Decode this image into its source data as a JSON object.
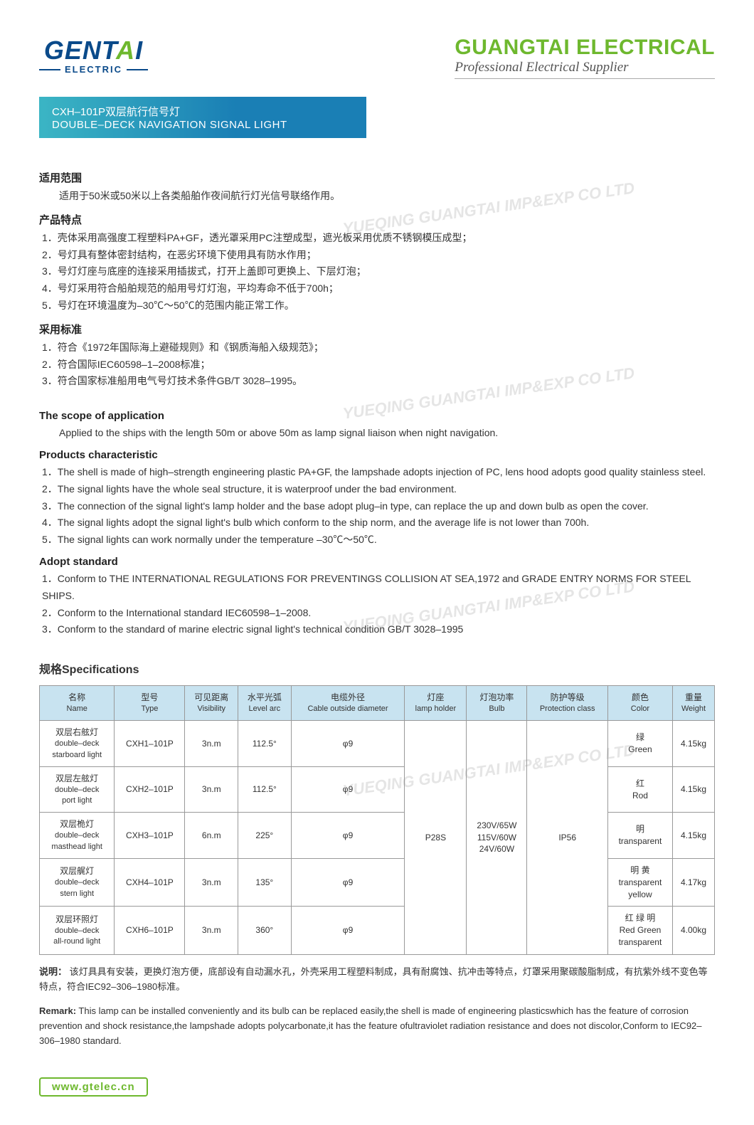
{
  "header": {
    "logo_left_main": "GENT",
    "logo_left_house": "A",
    "logo_left_tail": "I",
    "logo_left_sub": "ELECTRIC",
    "logo_right_main": "GUANGTAI ELECTRICAL",
    "logo_right_sub": "Professional Electrical Supplier"
  },
  "title": {
    "cn": "CXH–101P双层航行信号灯",
    "en": "DOUBLE–DECK  NAVIGATION SIGNAL LIGHT"
  },
  "cn_sections": {
    "scope_title": "适用范围",
    "scope_body": "适用于50米或50米以上各类船舶作夜间航行灯光信号联络作用。",
    "feature_title": "产品特点",
    "features": [
      "1．壳体采用高强度工程塑料PA+GF，透光罩采用PC注塑成型，遮光板采用优质不锈钢模压成型；",
      "2．号灯具有整体密封结构，在恶劣环境下使用具有防水作用；",
      "3．号灯灯座与底座的连接采用插拔式，打开上盖即可更换上、下层灯泡；",
      "4．号灯采用符合船舶规范的船用号灯灯泡，平均寿命不低于700h；",
      "5．号灯在环境温度为–30℃～50℃的范围内能正常工作。"
    ],
    "standard_title": "采用标准",
    "standards": [
      "1．符合《1972年国际海上避碰规则》和《钢质海船入级规范》；",
      "2．符合国际IEC60598–1–2008标准；",
      "3．符合国家标准船用电气号灯技术条件GB/T 3028–1995。"
    ]
  },
  "en_sections": {
    "scope_title": "The scope of application",
    "scope_body": "Applied to the ships with the length 50m or above 50m as lamp signal liaison when night navigation.",
    "feature_title": "Products characteristic",
    "features": [
      "1．The shell is made of high–strength engineering plastic PA+GF, the lampshade adopts injection of PC, lens hood adopts good quality stainless steel.",
      "2．The signal lights have the whole seal structure, it is waterproof under the bad environment.",
      "3．The connection of the signal light's lamp holder and the base adopt plug–in type, can replace the up and down bulb as open the cover.",
      "4．The signal lights adopt the signal light's bulb which conform to the ship norm, and the average life is not lower than 700h.",
      "5．The signal lights can work normally under the temperature –30℃～50℃."
    ],
    "standard_title": "Adopt standard",
    "standards": [
      "1．Conform to THE INTERNATIONAL REGULATIONS FOR PREVENTINGS COLLISION AT SEA,1972 and GRADE ENTRY NORMS FOR STEEL SHIPS.",
      "2．Conform to the International standard IEC60598–1–2008.",
      "3．Conform to the standard of marine electric signal light's technical condition GB/T 3028–1995"
    ]
  },
  "spec": {
    "title": "规格Specifications",
    "columns": [
      {
        "cn": "名称",
        "en": "Name"
      },
      {
        "cn": "型号",
        "en": "Type"
      },
      {
        "cn": "可见距离",
        "en": "Visibility"
      },
      {
        "cn": "水平光弧",
        "en": "Level arc"
      },
      {
        "cn": "电缆外径",
        "en": "Cable outside diameter"
      },
      {
        "cn": "灯座",
        "en": "lamp holder"
      },
      {
        "cn": "灯泡功率",
        "en": "Bulb"
      },
      {
        "cn": "防护等级",
        "en": "Protection class"
      },
      {
        "cn": "颜色",
        "en": "Color"
      },
      {
        "cn": "重量",
        "en": "Weight"
      }
    ],
    "shared": {
      "lamp_holder": "P28S",
      "bulb": "230V/65W\n115V/60W\n24V/60W",
      "protection": "IP56"
    },
    "rows": [
      {
        "name_cn": "双层右舷灯",
        "name_en": "double–deck\nstarboard light",
        "type": "CXH1–101P",
        "vis": "3n.m",
        "arc": "112.5°",
        "cable": "φ9",
        "color_cn": "绿",
        "color_en": "Green",
        "weight": "4.15kg"
      },
      {
        "name_cn": "双层左舷灯",
        "name_en": "double–deck\nport light",
        "type": "CXH2–101P",
        "vis": "3n.m",
        "arc": "112.5°",
        "cable": "φ9",
        "color_cn": "红",
        "color_en": "Rod",
        "weight": "4.15kg"
      },
      {
        "name_cn": "双层桅灯",
        "name_en": "double–deck\nmasthead light",
        "type": "CXH3–101P",
        "vis": "6n.m",
        "arc": "225°",
        "cable": "φ9",
        "color_cn": "明",
        "color_en": "transparent",
        "weight": "4.15kg"
      },
      {
        "name_cn": "双层艉灯",
        "name_en": "double–deck\nstern light",
        "type": "CXH4–101P",
        "vis": "3n.m",
        "arc": "135°",
        "cable": "φ9",
        "color_cn": "明 黄",
        "color_en": "transparent\nyellow",
        "weight": "4.17kg"
      },
      {
        "name_cn": "双层环照灯",
        "name_en": "double–deck\nall-round light",
        "type": "CXH6–101P",
        "vis": "3n.m",
        "arc": "360°",
        "cable": "φ9",
        "color_cn": "红 绿 明",
        "color_en": "Red Green\ntransparent",
        "weight": "4.00kg"
      }
    ]
  },
  "remarks": {
    "cn_label": "说明：",
    "cn_body": "该灯具具有安装，更换灯泡方便，底部设有自动漏水孔，外壳采用工程塑料制成，具有耐腐蚀、抗冲击等特点，灯罩采用聚碳酸脂制成，有抗紫外线不变色等特点，符合IEC92–306–1980标准。",
    "en_label": "Remark:",
    "en_body": "This lamp can be installed conveniently and its bulb can be replaced easily,the shell is made of engineering plasticswhich has the feature of corrosion prevention and shock resistance,the lampshade adopts polycarbonate,it has the feature ofultraviolet radiation resistance and does not discolor,Conform to IEC92–306–1980 standard."
  },
  "footer_url": "www.gtelec.cn",
  "watermark_text": "YUEQING GUANGTAI IMP&EXP CO LTD",
  "styling": {
    "title_bar_gradient_from": "#3bb5c4",
    "title_bar_gradient_to": "#1a7fb5",
    "table_header_bg": "#c8e3f0",
    "table_border": "#999999",
    "accent_green": "#6eb82e",
    "accent_blue": "#0a4a8a",
    "body_font_size": 14,
    "table_font_size": 12
  }
}
